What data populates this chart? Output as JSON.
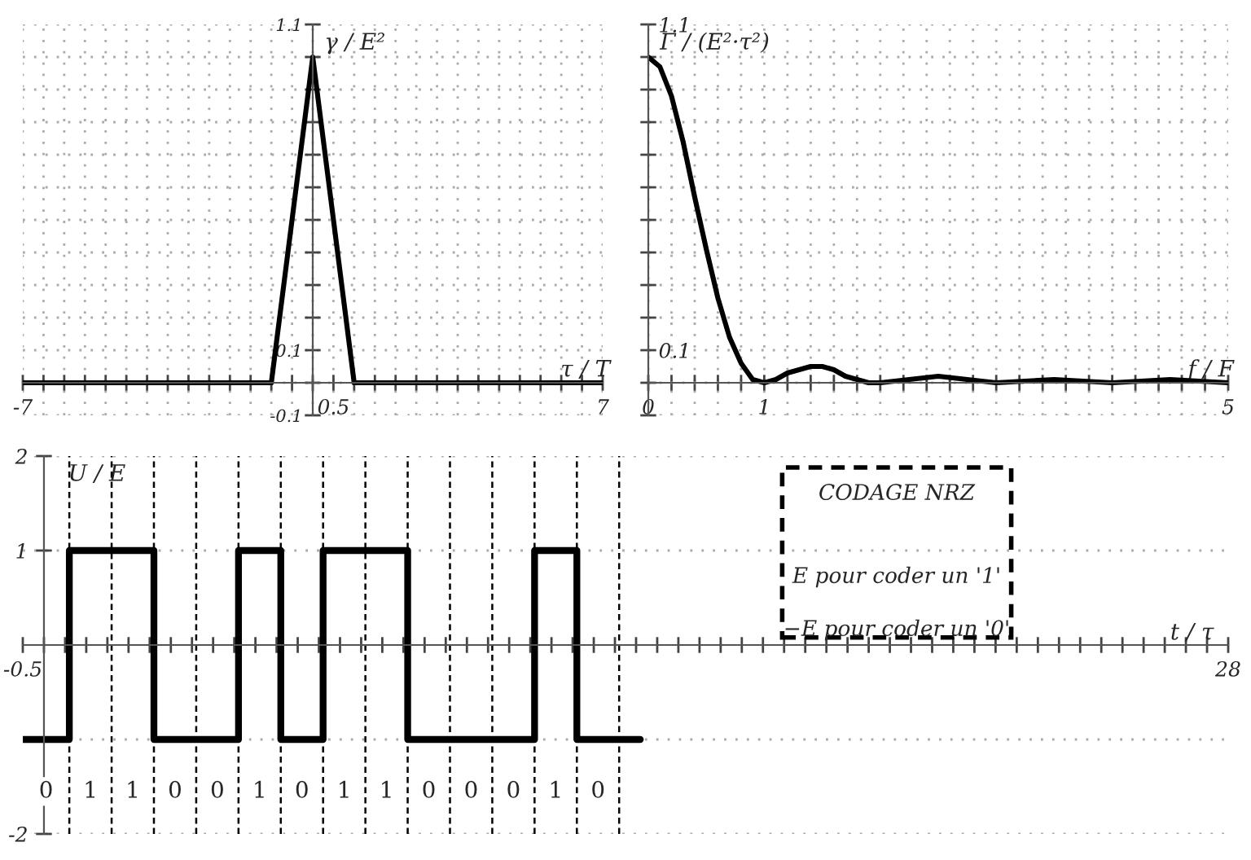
{
  "chart_data": [
    {
      "type": "line",
      "xlabel": "τ / T",
      "ylabel": "γ / E²",
      "grid": true,
      "xlim": [
        -7,
        7
      ],
      "ylim": [
        -0.1,
        1.1
      ],
      "xticks": [
        -7,
        {
          "value": -6.5,
          "label": null
        },
        {
          "value": -6,
          "label": null
        },
        {
          "value": -5.5,
          "label": null
        },
        {
          "value": -5,
          "label": null
        },
        {
          "value": -4.5,
          "label": null
        },
        {
          "value": -4,
          "label": null
        },
        {
          "value": -3.5,
          "label": null
        },
        {
          "value": -3,
          "label": null
        },
        {
          "value": -2.5,
          "label": null
        },
        {
          "value": -2,
          "label": null
        },
        {
          "value": -1.5,
          "label": null
        },
        {
          "value": -1,
          "label": null
        },
        {
          "value": -0.5,
          "label": null
        },
        {
          "value": 0,
          "label": null
        },
        0.5,
        {
          "value": 1,
          "label": null
        },
        {
          "value": 1.5,
          "label": null
        },
        {
          "value": 2,
          "label": null
        },
        {
          "value": 2.5,
          "label": null
        },
        {
          "value": 3,
          "label": null
        },
        {
          "value": 3.5,
          "label": null
        },
        {
          "value": 4,
          "label": null
        },
        {
          "value": 4.5,
          "label": null
        },
        {
          "value": 5,
          "label": null
        },
        {
          "value": 5.5,
          "label": null
        },
        {
          "value": 6,
          "label": null
        },
        {
          "value": 6.5,
          "label": null
        },
        7
      ],
      "yticks": [
        -0.1,
        {
          "value": 0,
          "label": null
        },
        0.1,
        {
          "value": 0.2,
          "label": null
        },
        {
          "value": 0.3,
          "label": null
        },
        {
          "value": 0.4,
          "label": null
        },
        {
          "value": 0.5,
          "label": null
        },
        {
          "value": 0.6,
          "label": null
        },
        {
          "value": 0.7,
          "label": null
        },
        {
          "value": 0.8,
          "label": null
        },
        {
          "value": 0.9,
          "label": null
        },
        {
          "value": 1,
          "label": null
        },
        1.1
      ],
      "series": [
        {
          "color": "#000000",
          "x": [
            -7,
            -1,
            0,
            1,
            7
          ],
          "values": [
            0,
            0,
            1,
            0,
            0
          ]
        }
      ]
    },
    {
      "type": "line",
      "xlabel": "f / F",
      "ylabel": "Γ / (E²·τ²)",
      "grid": true,
      "xlim": [
        0,
        5
      ],
      "ylim": [
        -0.1,
        1.1
      ],
      "xticks": [
        0,
        {
          "value": 0.2,
          "label": null
        },
        {
          "value": 0.4,
          "label": null
        },
        {
          "value": 0.6,
          "label": null
        },
        {
          "value": 0.8,
          "label": null
        },
        1,
        {
          "value": 1.2,
          "label": null
        },
        {
          "value": 1.4,
          "label": null
        },
        {
          "value": 1.6,
          "label": null
        },
        {
          "value": 1.8,
          "label": null
        },
        {
          "value": 2,
          "label": null
        },
        {
          "value": 2.2,
          "label": null
        },
        {
          "value": 2.4,
          "label": null
        },
        {
          "value": 2.6,
          "label": null
        },
        {
          "value": 2.8,
          "label": null
        },
        {
          "value": 3,
          "label": null
        },
        {
          "value": 3.2,
          "label": null
        },
        {
          "value": 3.4,
          "label": null
        },
        {
          "value": 3.6,
          "label": null
        },
        {
          "value": 3.8,
          "label": null
        },
        {
          "value": 4,
          "label": null
        },
        {
          "value": 4.2,
          "label": null
        },
        {
          "value": 4.4,
          "label": null
        },
        {
          "value": 4.6,
          "label": null
        },
        {
          "value": 4.8,
          "label": null
        },
        5
      ],
      "yticks": [
        {
          "value": -0.1,
          "label": null
        },
        {
          "value": 0,
          "label": null
        },
        0.1,
        {
          "value": 0.2,
          "label": null
        },
        {
          "value": 0.3,
          "label": null
        },
        {
          "value": 0.4,
          "label": null
        },
        {
          "value": 0.5,
          "label": null
        },
        {
          "value": 0.6,
          "label": null
        },
        {
          "value": 0.7,
          "label": null
        },
        {
          "value": 0.8,
          "label": null
        },
        {
          "value": 0.9,
          "label": null
        },
        {
          "value": 1,
          "label": null
        },
        1.1
      ],
      "series": [
        {
          "color": "#000000",
          "x": [
            0,
            0.1,
            0.2,
            0.3,
            0.4,
            0.5,
            0.6,
            0.7,
            0.8,
            0.9,
            1,
            1.1,
            1.2,
            1.3,
            1.4,
            1.5,
            1.6,
            1.7,
            1.8,
            1.9,
            2,
            2.25,
            2.5,
            2.75,
            3,
            3.5,
            4,
            4.5,
            5
          ],
          "values": [
            1,
            0.97,
            0.88,
            0.74,
            0.57,
            0.41,
            0.26,
            0.14,
            0.06,
            0.01,
            0,
            0.01,
            0.03,
            0.04,
            0.05,
            0.05,
            0.04,
            0.02,
            0.01,
            0,
            0,
            0.01,
            0.02,
            0.01,
            0,
            0.01,
            0,
            0.01,
            0
          ]
        }
      ]
    },
    {
      "type": "step",
      "xlabel": "t / τ",
      "ylabel": "U / E",
      "grid": "y",
      "xlim": [
        -0.5,
        28
      ],
      "ylim": [
        -2,
        2
      ],
      "xticks": [
        -0.5,
        {
          "value": 0,
          "label": null
        },
        {
          "value": 0.5,
          "label": null
        },
        {
          "value": 1,
          "label": null
        },
        {
          "value": 1.5,
          "label": null
        },
        {
          "value": 2,
          "label": null
        },
        {
          "value": 2.5,
          "label": null
        },
        {
          "value": 3,
          "label": null
        },
        {
          "value": 3.5,
          "label": null
        },
        {
          "value": 4,
          "label": null
        },
        {
          "value": 4.5,
          "label": null
        },
        {
          "value": 5,
          "label": null
        },
        {
          "value": 5.5,
          "label": null
        },
        {
          "value": 6,
          "label": null
        },
        {
          "value": 6.5,
          "label": null
        },
        {
          "value": 7,
          "label": null
        },
        {
          "value": 7.5,
          "label": null
        },
        {
          "value": 8,
          "label": null
        },
        {
          "value": 8.5,
          "label": null
        },
        {
          "value": 9,
          "label": null
        },
        {
          "value": 9.5,
          "label": null
        },
        {
          "value": 10,
          "label": null
        },
        {
          "value": 10.5,
          "label": null
        },
        {
          "value": 11,
          "label": null
        },
        {
          "value": 11.5,
          "label": null
        },
        {
          "value": 12,
          "label": null
        },
        {
          "value": 12.5,
          "label": null
        },
        {
          "value": 13,
          "label": null
        },
        {
          "value": 13.5,
          "label": null
        },
        {
          "value": 14,
          "label": null
        },
        {
          "value": 14.5,
          "label": null
        },
        {
          "value": 15,
          "label": null
        },
        {
          "value": 15.5,
          "label": null
        },
        {
          "value": 16,
          "label": null
        },
        {
          "value": 16.5,
          "label": null
        },
        {
          "value": 17,
          "label": null
        },
        {
          "value": 17.5,
          "label": null
        },
        {
          "value": 18,
          "label": null
        },
        {
          "value": 18.5,
          "label": null
        },
        {
          "value": 19,
          "label": null
        },
        {
          "value": 19.5,
          "label": null
        },
        {
          "value": 20,
          "label": null
        },
        {
          "value": 20.5,
          "label": null
        },
        {
          "value": 21,
          "label": null
        },
        {
          "value": 21.5,
          "label": null
        },
        {
          "value": 22,
          "label": null
        },
        {
          "value": 22.5,
          "label": null
        },
        {
          "value": 23,
          "label": null
        },
        {
          "value": 23.5,
          "label": null
        },
        {
          "value": 24,
          "label": null
        },
        {
          "value": 24.5,
          "label": null
        },
        {
          "value": 25,
          "label": null
        },
        {
          "value": 25.5,
          "label": null
        },
        {
          "value": 26,
          "label": null
        },
        {
          "value": 26.5,
          "label": null
        },
        {
          "value": 27,
          "label": null
        },
        {
          "value": 27.5,
          "label": null
        },
        28
      ],
      "yticks": [
        -2,
        {
          "value": -1,
          "label": null
        },
        1,
        2
      ],
      "series": [
        {
          "color": "#000000",
          "x": [
            -0.5,
            0.6,
            1.6,
            2.6,
            3.6,
            4.6,
            5.6,
            6.6,
            7.6,
            8.6,
            9.6,
            10.6,
            11.6,
            12.6,
            13.6,
            14.1
          ],
          "values": [
            -1,
            1,
            1,
            -1,
            -1,
            1,
            -1,
            1,
            1,
            -1,
            -1,
            -1,
            1,
            -1,
            -1,
            -1
          ]
        }
      ],
      "ref_lines": [
        {
          "axis": "x",
          "value": 0.6,
          "color": "#000000",
          "line_style": "dashed"
        },
        {
          "axis": "x",
          "value": 1.6,
          "color": "#000000",
          "line_style": "dashed"
        },
        {
          "axis": "x",
          "value": 2.6,
          "color": "#000000",
          "line_style": "dashed"
        },
        {
          "axis": "x",
          "value": 3.6,
          "color": "#000000",
          "line_style": "dashed"
        },
        {
          "axis": "x",
          "value": 4.6,
          "color": "#000000",
          "line_style": "dashed"
        },
        {
          "axis": "x",
          "value": 5.6,
          "color": "#000000",
          "line_style": "dashed"
        },
        {
          "axis": "x",
          "value": 6.6,
          "color": "#000000",
          "line_style": "dashed"
        },
        {
          "axis": "x",
          "value": 7.6,
          "color": "#000000",
          "line_style": "dashed"
        },
        {
          "axis": "x",
          "value": 8.6,
          "color": "#000000",
          "line_style": "dashed"
        },
        {
          "axis": "x",
          "value": 9.6,
          "color": "#000000",
          "line_style": "dashed"
        },
        {
          "axis": "x",
          "value": 10.6,
          "color": "#000000",
          "line_style": "dashed"
        },
        {
          "axis": "x",
          "value": 11.6,
          "color": "#000000",
          "line_style": "dashed"
        },
        {
          "axis": "x",
          "value": 12.6,
          "color": "#000000",
          "line_style": "dashed"
        },
        {
          "axis": "x",
          "value": 13.6,
          "color": "#000000",
          "line_style": "dashed"
        }
      ],
      "annotations": [
        "0",
        "1",
        "1",
        "0",
        "0",
        "1",
        "0",
        "1",
        "1",
        "0",
        "0",
        "0",
        "1",
        "0",
        "CODAGE NRZ",
        "E pour coder un '1'",
        "−E pour coder un '0'"
      ]
    }
  ]
}
